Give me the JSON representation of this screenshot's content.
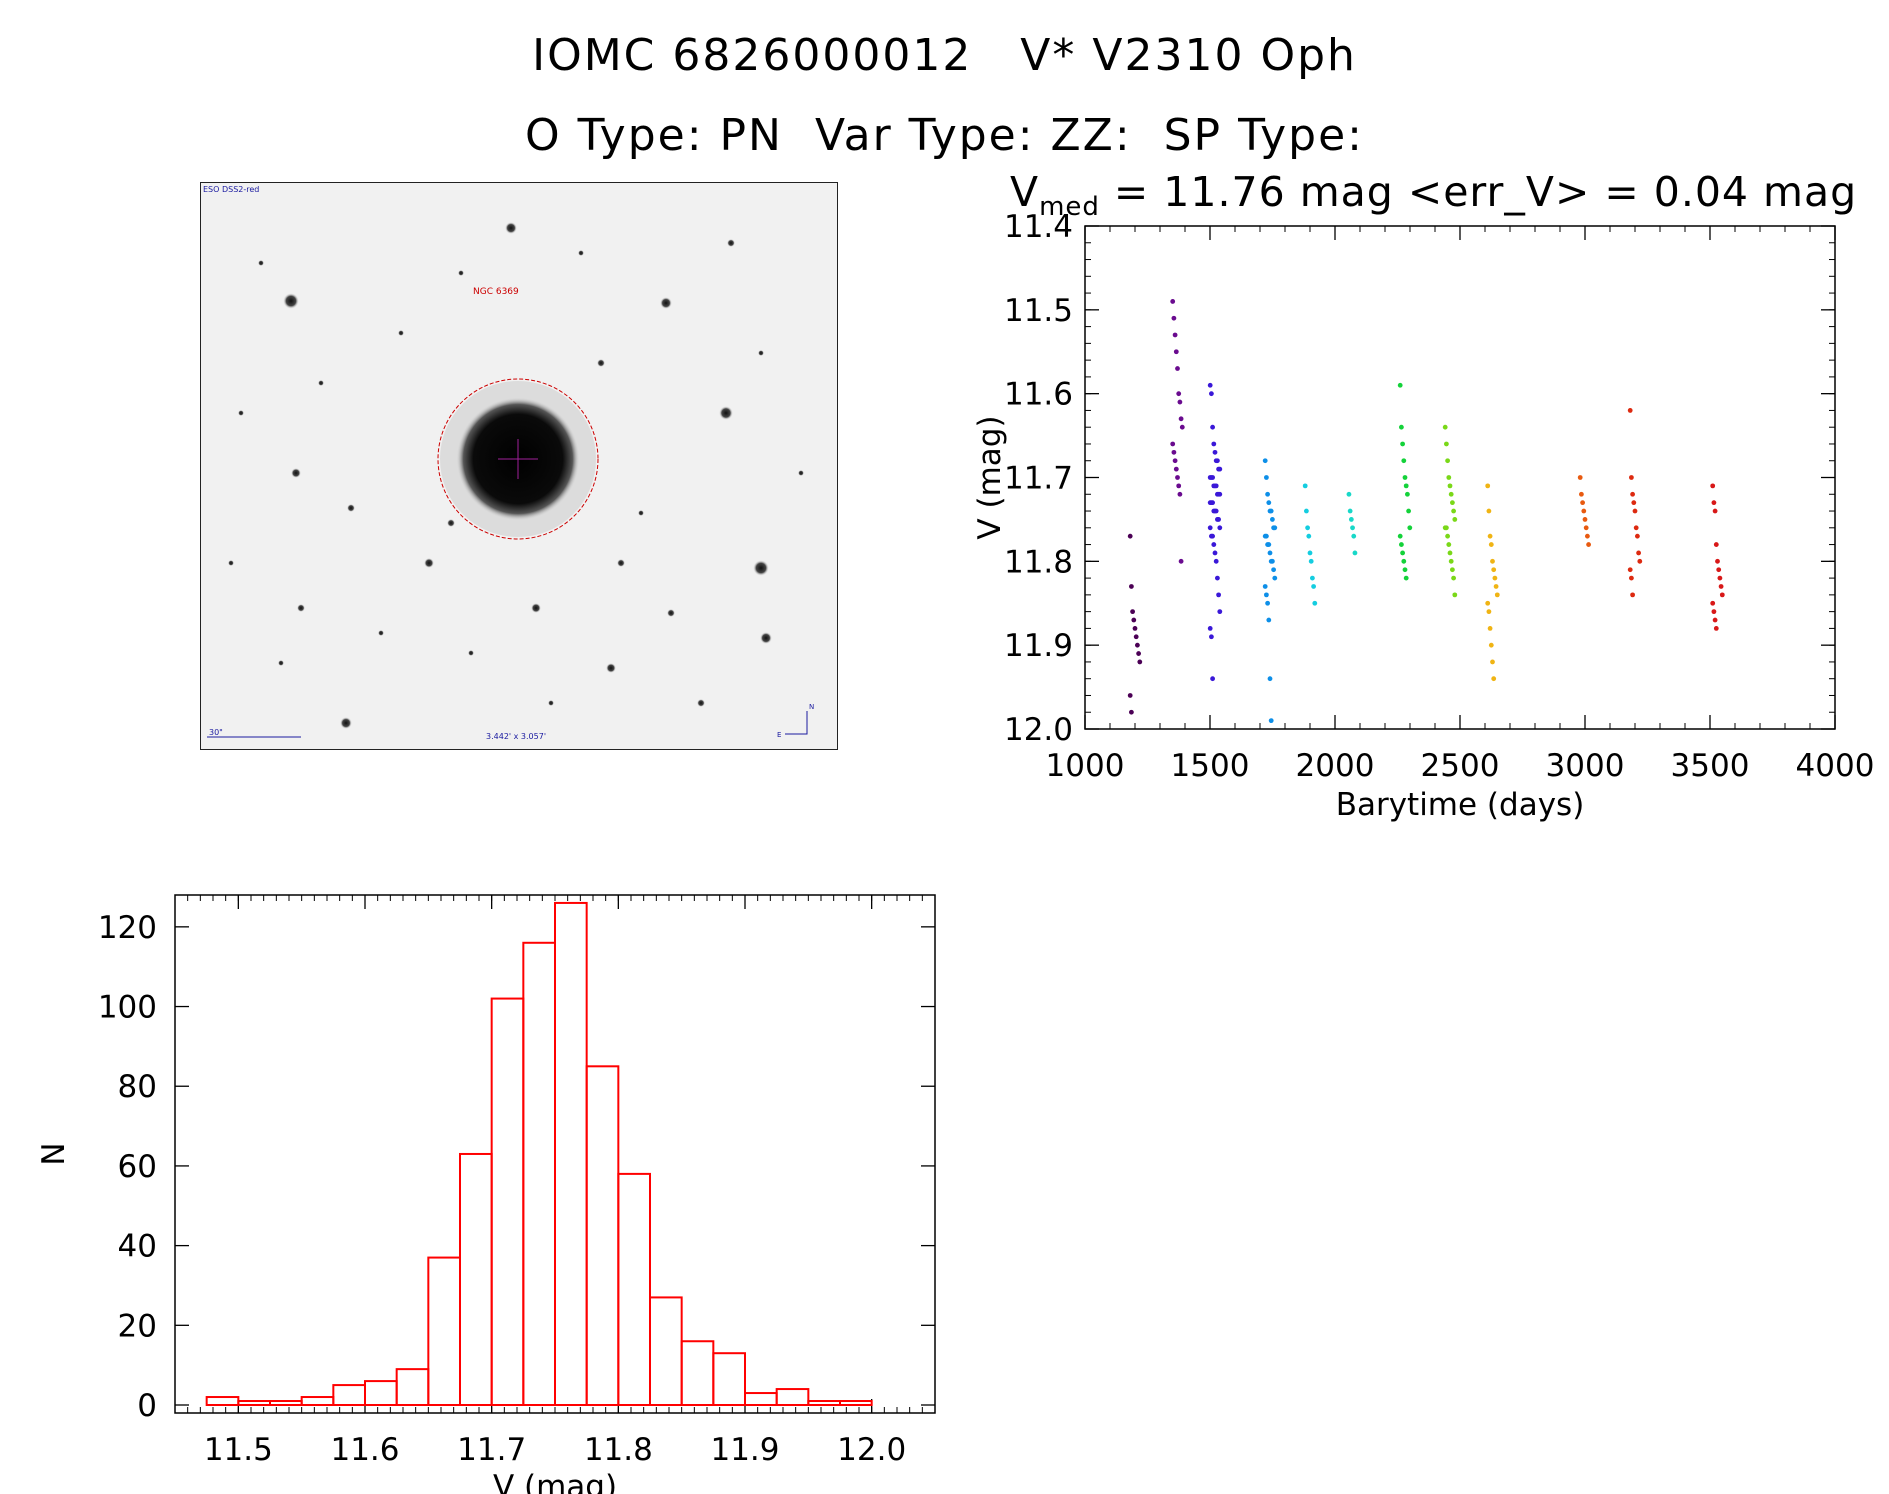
{
  "header": {
    "title_line1": "IOMC 6826000012   V* V2310 Oph",
    "title_line2": "O Type: PN  Var Type: ZZ:  SP Type:",
    "stats_prefix": "V",
    "stats_sub": "med",
    "stats_text": " = 11.76 mag <err_V> = 0.04 mag"
  },
  "finder_chart": {
    "survey_label": "ESO DSS2-red",
    "object_label": "NGC 6369",
    "scale_label": "30\"",
    "fov_label": "3.442' x 3.057'",
    "compass_n": "N",
    "compass_e": "E",
    "colors": {
      "marker": "#cc0000",
      "annotation": "#1a1aa0"
    }
  },
  "chart_data": [
    {
      "type": "scatter",
      "xlabel": "Barytime (days)",
      "ylabel": "V (mag)",
      "xlim": [
        1000,
        4000
      ],
      "ylim": [
        12.0,
        11.4
      ],
      "y_inverted": true,
      "xticks": [
        "1000",
        "1500",
        "2000",
        "2500",
        "3000",
        "3500",
        "4000"
      ],
      "yticks": [
        "11.4",
        "11.5",
        "11.6",
        "11.7",
        "11.8",
        "11.9",
        "12.0"
      ],
      "color_scale": "rainbow (by time)",
      "groups": [
        {
          "x": 1200,
          "color": "#4b0055",
          "y": [
            11.77,
            11.83,
            11.86,
            11.87,
            11.88,
            11.89,
            11.9,
            11.91,
            11.92,
            11.96,
            11.98
          ]
        },
        {
          "x": 1370,
          "color": "#6a0b8f",
          "y": [
            11.49,
            11.51,
            11.53,
            11.55,
            11.57,
            11.6,
            11.61,
            11.63,
            11.64,
            11.66,
            11.67,
            11.68,
            11.69,
            11.7,
            11.71,
            11.72,
            11.8
          ]
        },
        {
          "x": 1520,
          "color": "#3a18d8",
          "y": [
            11.59,
            11.6,
            11.64,
            11.66,
            11.67,
            11.68,
            11.68,
            11.69,
            11.69,
            11.7,
            11.7,
            11.7,
            11.71,
            11.71,
            11.71,
            11.72,
            11.72,
            11.72,
            11.73,
            11.73,
            11.73,
            11.74,
            11.74,
            11.74,
            11.75,
            11.75,
            11.76,
            11.76,
            11.77,
            11.77,
            11.78,
            11.79,
            11.8,
            11.82,
            11.84,
            11.86,
            11.88,
            11.89,
            11.94
          ]
        },
        {
          "x": 1740,
          "color": "#0d8fe8",
          "y": [
            11.68,
            11.7,
            11.72,
            11.73,
            11.74,
            11.74,
            11.75,
            11.76,
            11.76,
            11.77,
            11.77,
            11.78,
            11.78,
            11.79,
            11.8,
            11.8,
            11.81,
            11.82,
            11.83,
            11.84,
            11.85,
            11.87,
            11.94,
            11.99
          ]
        },
        {
          "x": 1900,
          "color": "#14cde0",
          "y": [
            11.71,
            11.74,
            11.76,
            11.77,
            11.79,
            11.8,
            11.82,
            11.83,
            11.85
          ]
        },
        {
          "x": 2075,
          "color": "#18d8c8",
          "y": [
            11.72,
            11.74,
            11.75,
            11.76,
            11.77,
            11.79
          ]
        },
        {
          "x": 2280,
          "color": "#14d23a",
          "y": [
            11.59,
            11.64,
            11.66,
            11.68,
            11.7,
            11.71,
            11.72,
            11.74,
            11.76,
            11.77,
            11.78,
            11.79,
            11.8,
            11.81,
            11.82
          ]
        },
        {
          "x": 2460,
          "color": "#7ad818",
          "y": [
            11.64,
            11.66,
            11.68,
            11.7,
            11.71,
            11.72,
            11.73,
            11.74,
            11.75,
            11.76,
            11.76,
            11.77,
            11.78,
            11.79,
            11.8,
            11.81,
            11.82,
            11.84
          ]
        },
        {
          "x": 2630,
          "color": "#f0b414",
          "y": [
            11.71,
            11.74,
            11.77,
            11.78,
            11.8,
            11.81,
            11.82,
            11.83,
            11.84,
            11.85,
            11.86,
            11.88,
            11.9,
            11.92,
            11.94
          ]
        },
        {
          "x": 3000,
          "color": "#e85a10",
          "y": [
            11.7,
            11.72,
            11.73,
            11.74,
            11.75,
            11.76,
            11.77,
            11.78
          ]
        },
        {
          "x": 3200,
          "color": "#dd2a10",
          "y": [
            11.62,
            11.7,
            11.72,
            11.73,
            11.74,
            11.76,
            11.77,
            11.79,
            11.8,
            11.81,
            11.82,
            11.84
          ]
        },
        {
          "x": 3530,
          "color": "#d81818",
          "y": [
            11.71,
            11.73,
            11.74,
            11.78,
            11.8,
            11.81,
            11.82,
            11.83,
            11.84,
            11.85,
            11.86,
            11.87,
            11.88
          ]
        }
      ]
    },
    {
      "type": "bar",
      "subtype": "histogram",
      "xlabel": "V (mag)",
      "ylabel": "N",
      "xlim": [
        11.45,
        12.05
      ],
      "ylim": [
        0,
        130
      ],
      "xticks": [
        "11.5",
        "11.6",
        "11.7",
        "11.8",
        "11.9",
        "12.0"
      ],
      "yticks": [
        "0",
        "20",
        "40",
        "60",
        "80",
        "100",
        "120"
      ],
      "bin_width": 0.025,
      "bin_edges_start": 11.475,
      "counts": [
        2,
        1,
        1,
        2,
        5,
        6,
        9,
        37,
        63,
        102,
        116,
        126,
        85,
        58,
        27,
        16,
        13,
        3,
        4,
        1,
        1
      ],
      "color": "#ff0000"
    }
  ]
}
